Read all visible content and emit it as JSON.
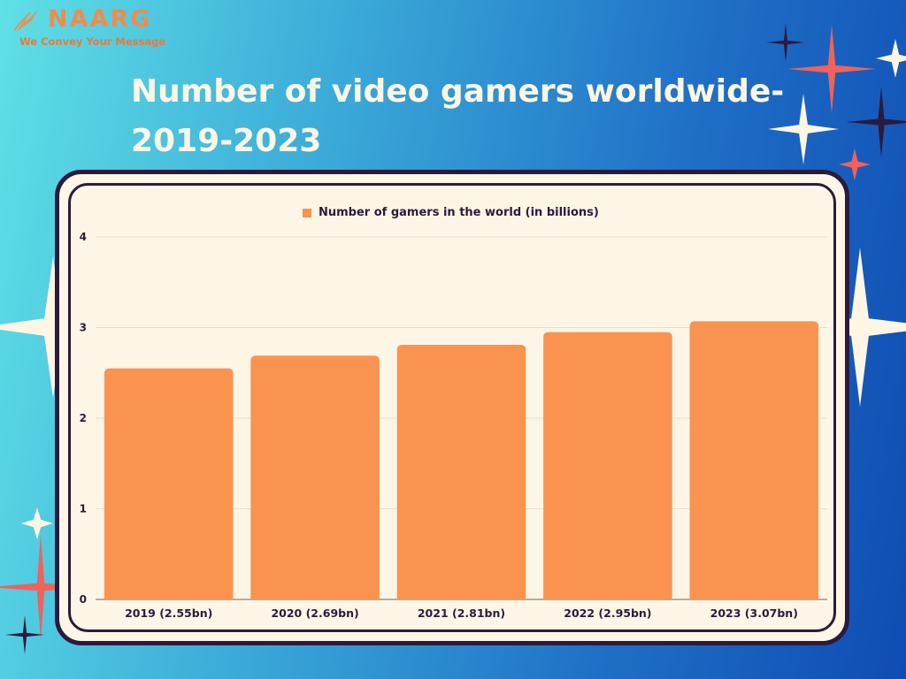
{
  "brand": {
    "name": "NAARG",
    "tagline": "We Convey Your Message",
    "color": "#f48a48"
  },
  "title": "Number of video gamers worldwide- 2019-2023",
  "colors": {
    "bar": "#fa9350",
    "frame_border": "#2c1a3c",
    "panel": "#fdf6e6",
    "title": "#fdf6e3"
  },
  "chart_data": {
    "type": "bar",
    "categories": [
      "2019 (2.55bn)",
      "2020 (2.69bn)",
      "2021 (2.81bn)",
      "2022 (2.95bn)",
      "2023 (3.07bn)"
    ],
    "series": [
      {
        "name": "Number of gamers in the world (in billions)",
        "values": [
          2.55,
          2.69,
          2.81,
          2.95,
          3.07
        ]
      }
    ],
    "ylim": [
      0,
      4
    ],
    "yticks": [
      "0",
      "1",
      "2",
      "3",
      "4"
    ],
    "xlabel": "",
    "ylabel": "",
    "legend_position": "top-center",
    "grid": true
  }
}
